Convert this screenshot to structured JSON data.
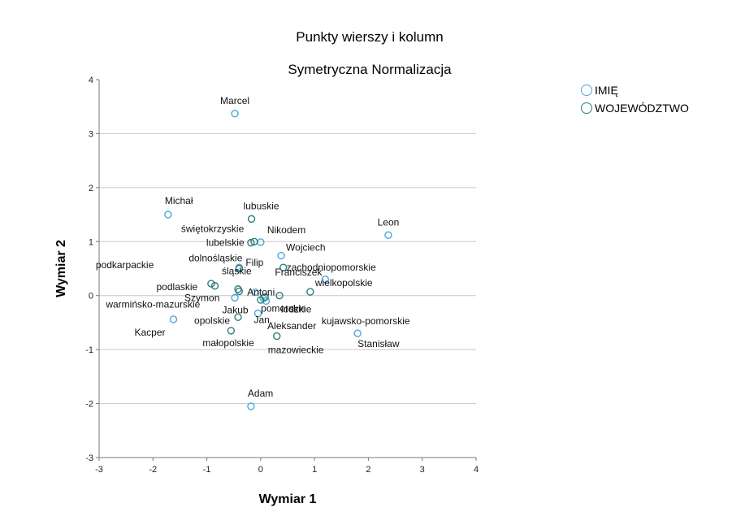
{
  "chart_data": {
    "type": "scatter",
    "title": "Punkty wierszy i kolumn",
    "subtitle": "Symetryczna Normalizacja",
    "xlabel": "Wymiar 1",
    "ylabel": "Wymiar 2",
    "xlim": [
      -3,
      4
    ],
    "ylim": [
      -3,
      4
    ],
    "xticks": [
      -3,
      -2,
      -1,
      0,
      1,
      2,
      3,
      4
    ],
    "yticks": [
      -3,
      -2,
      -1,
      0,
      1,
      2,
      3,
      4
    ],
    "grid": "horizontal",
    "legend_position": "top-right",
    "series": [
      {
        "name": "IMIĘ",
        "color": "#4aa8dc",
        "points": [
          {
            "label": "Marcel",
            "x": -0.48,
            "y": 3.37
          },
          {
            "label": "Michał",
            "x": -1.72,
            "y": 1.5
          },
          {
            "label": "Leon",
            "x": 2.37,
            "y": 1.12
          },
          {
            "label": "Nikodem",
            "x": 0.0,
            "y": 0.99
          },
          {
            "label": "Wojciech",
            "x": 0.38,
            "y": 0.74
          },
          {
            "label": "Filip",
            "x": -0.4,
            "y": 0.52
          },
          {
            "label": "Antoni",
            "x": -0.1,
            "y": 0.06
          },
          {
            "label": "Franciszek",
            "x": 1.2,
            "y": 0.3
          },
          {
            "label": "Szymon",
            "x": -0.48,
            "y": -0.04
          },
          {
            "label": "Jakub",
            "x": -0.05,
            "y": -0.33
          },
          {
            "label": "Jan",
            "x": 0.1,
            "y": -0.1
          },
          {
            "label": "Aleksander",
            "x": 0.05,
            "y": -0.05
          },
          {
            "label": "Kacper",
            "x": -1.62,
            "y": -0.44
          },
          {
            "label": "Stanisław",
            "x": 1.8,
            "y": -0.7
          },
          {
            "label": "Adam",
            "x": -0.18,
            "y": -2.05
          }
        ]
      },
      {
        "name": "WOJEWÓDZTWO",
        "color": "#2e7d7a",
        "points": [
          {
            "label": "lubuskie",
            "x": -0.17,
            "y": 1.42
          },
          {
            "label": "świętokrzyskie",
            "x": -0.12,
            "y": 1.0
          },
          {
            "label": "lubelskie",
            "x": -0.18,
            "y": 0.98
          },
          {
            "label": "dolnośląskie",
            "x": -0.4,
            "y": 0.5
          },
          {
            "label": "zachodniopomorskie",
            "x": 0.42,
            "y": 0.52
          },
          {
            "label": "podkarpackie",
            "x": -0.92,
            "y": 0.22
          },
          {
            "label": "podlaskie",
            "x": -0.85,
            "y": 0.18
          },
          {
            "label": "śląskie",
            "x": -0.42,
            "y": 0.12
          },
          {
            "label": "wielkopolskie",
            "x": 0.92,
            "y": 0.07
          },
          {
            "label": "łódzkie",
            "x": 0.35,
            "y": 0.0
          },
          {
            "label": "pomorskie",
            "x": 0.08,
            "y": -0.03
          },
          {
            "label": "warmińsko-mazurskie",
            "x": -0.4,
            "y": 0.08
          },
          {
            "label": "kujawsko-pomorskie",
            "x": 0.0,
            "y": -0.08
          },
          {
            "label": "opolskie",
            "x": -0.42,
            "y": -0.4
          },
          {
            "label": "małopolskie",
            "x": -0.55,
            "y": -0.65
          },
          {
            "label": "mazowieckie",
            "x": 0.3,
            "y": -0.75
          }
        ]
      }
    ]
  },
  "labels": [
    {
      "key": "Marcel",
      "text": "Marcel"
    },
    {
      "key": "Michał",
      "text": "Michał"
    },
    {
      "key": "Leon",
      "text": "Leon"
    },
    {
      "key": "lubuskie",
      "text": "lubuskie"
    },
    {
      "key": "świętokrzyskie",
      "text": "świętokrzyskie"
    },
    {
      "key": "Nikodem",
      "text": "Nikodem"
    },
    {
      "key": "lubelskie",
      "text": "lubelskie"
    },
    {
      "key": "Wojciech",
      "text": "Wojciech"
    },
    {
      "key": "dolnośląskie",
      "text": "dolnośląskie"
    },
    {
      "key": "podkarpackie",
      "text": "podkarpackie"
    },
    {
      "key": "Filip",
      "text": "Filip"
    },
    {
      "key": "zachodniopomorskie",
      "text": "zachodniopomorskie"
    },
    {
      "key": "podlaskie",
      "text": "podlaskie"
    },
    {
      "key": "śląskie",
      "text": "śląskie"
    },
    {
      "key": "Antoni",
      "text": "Antoni"
    },
    {
      "key": "Franciszek",
      "text": "Franciszek"
    },
    {
      "key": "wielkopolskie",
      "text": "wielkopolskie"
    },
    {
      "key": "Szymon",
      "text": "Szymon"
    },
    {
      "key": "pomorskie",
      "text": "pomorskie"
    },
    {
      "key": "warmińsko-mazurskie",
      "text": "warmińsko-mazurskie"
    },
    {
      "key": "Jakub",
      "text": "Jakub"
    },
    {
      "key": "łódzkie",
      "text": "łódzkie"
    },
    {
      "key": "kujawsko-pomorskie",
      "text": "kujawsko-pomorskie"
    },
    {
      "key": "opolskie",
      "text": "opolskie"
    },
    {
      "key": "Jan",
      "text": "Jan"
    },
    {
      "key": "Aleksander",
      "text": "Aleksander"
    },
    {
      "key": "Kacper",
      "text": "Kacper"
    },
    {
      "key": "małopolskie",
      "text": "małopolskie"
    },
    {
      "key": "mazowieckie",
      "text": "mazowieckie"
    },
    {
      "key": "Stanisław",
      "text": "Stanisław"
    },
    {
      "key": "Adam",
      "text": "Adam"
    }
  ]
}
